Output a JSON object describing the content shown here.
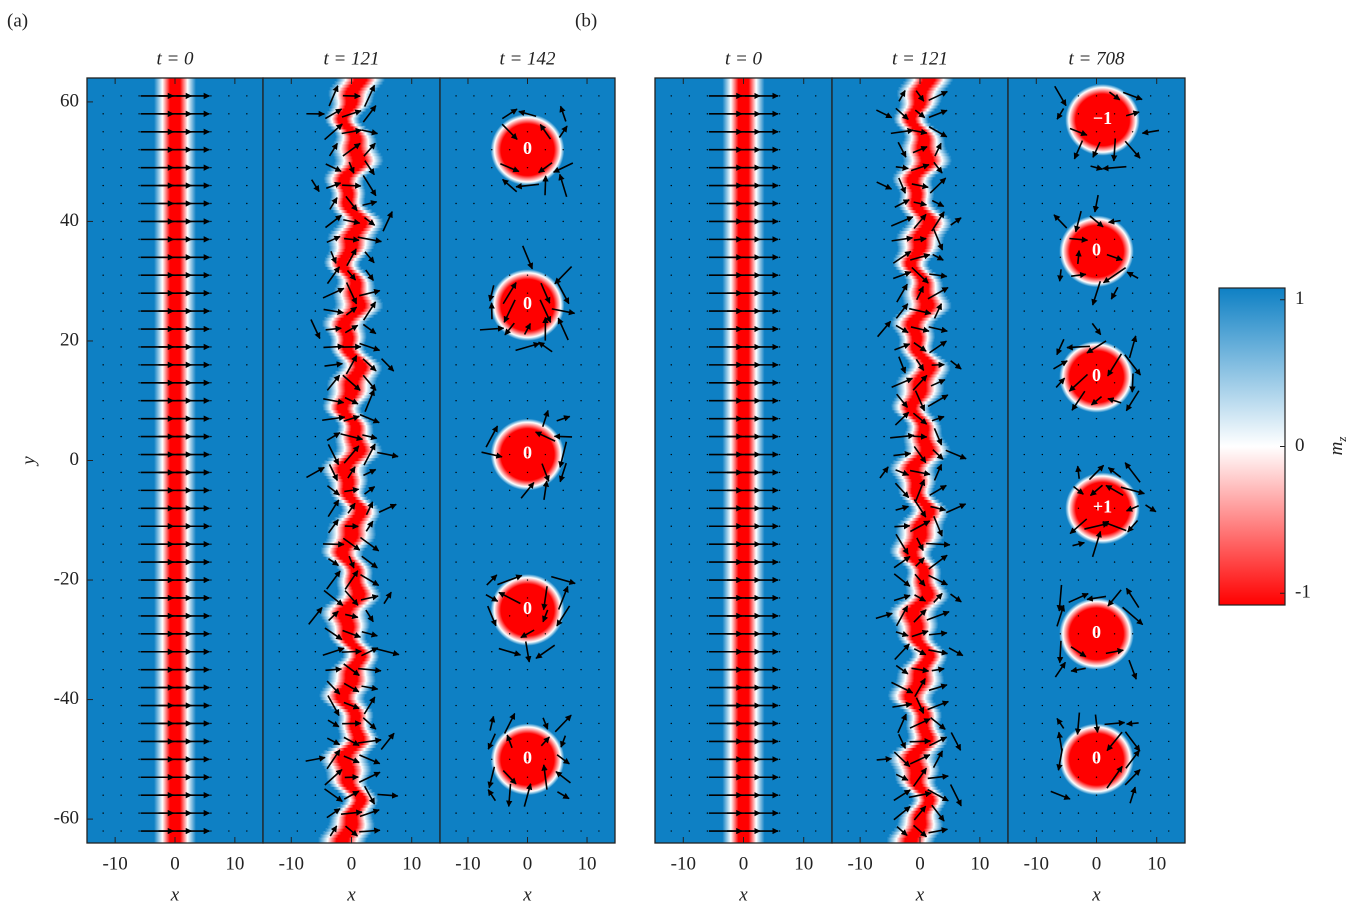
{
  "chart_data": [
    {
      "type": "field",
      "pattern": "wall",
      "group_label": "(a)",
      "title": "t = 0",
      "xlabel": "x",
      "ylabel": "y",
      "xlim": [
        -14.7,
        14.7
      ],
      "ylim": [
        -64,
        64
      ],
      "xticks": [
        -10,
        0,
        10
      ],
      "yticks": [
        -60,
        -40,
        -20,
        0,
        20,
        40,
        60
      ]
    },
    {
      "type": "field",
      "pattern": "wavy-wall",
      "title": "t = 121",
      "xlabel": "x",
      "xlim": [
        -14.7,
        14.7
      ],
      "ylim": [
        -64,
        64
      ],
      "xticks": [
        -10,
        0,
        10
      ]
    },
    {
      "type": "field",
      "pattern": "domains",
      "title": "t = 142",
      "xlabel": "x",
      "xlim": [
        -14.7,
        14.7
      ],
      "ylim": [
        -64,
        64
      ],
      "xticks": [
        -10,
        0,
        10
      ],
      "annotations": [
        {
          "text": "0",
          "x": 0,
          "y": 52
        },
        {
          "text": "0",
          "x": 0,
          "y": 26
        },
        {
          "text": "0",
          "x": 0,
          "y": 1
        },
        {
          "text": "0",
          "x": 0,
          "y": -25
        },
        {
          "text": "0",
          "x": 0,
          "y": -50
        }
      ]
    },
    {
      "type": "field",
      "pattern": "wall",
      "group_label": "(b)",
      "title": "t = 0",
      "xlabel": "x",
      "xlim": [
        -14.7,
        14.7
      ],
      "ylim": [
        -64,
        64
      ],
      "xticks": [
        -10,
        0,
        10
      ]
    },
    {
      "type": "field",
      "pattern": "wavy-wall",
      "title": "t = 121",
      "xlabel": "x",
      "xlim": [
        -14.7,
        14.7
      ],
      "ylim": [
        -64,
        64
      ],
      "xticks": [
        -10,
        0,
        10
      ]
    },
    {
      "type": "field",
      "pattern": "domains",
      "title": "t = 708",
      "xlabel": "x",
      "xlim": [
        -14.7,
        14.7
      ],
      "ylim": [
        -64,
        64
      ],
      "xticks": [
        -10,
        0,
        10
      ],
      "annotations": [
        {
          "text": "−1",
          "x": 1,
          "y": 57
        },
        {
          "text": "0",
          "x": 0,
          "y": 35
        },
        {
          "text": "0",
          "x": 0,
          "y": 14
        },
        {
          "text": "+1",
          "x": 1,
          "y": -8
        },
        {
          "text": "0",
          "x": 0,
          "y": -29
        },
        {
          "text": "0",
          "x": 0,
          "y": -50
        }
      ]
    },
    {
      "type": "colorbar",
      "label": {
        "base": "m",
        "sub": "z"
      },
      "colormap": [
        "#0e80c4",
        "#ffffff",
        "#ff0000"
      ],
      "ylim": [
        -1.08,
        1.08
      ],
      "yticks": [
        -1,
        0,
        1
      ]
    }
  ]
}
